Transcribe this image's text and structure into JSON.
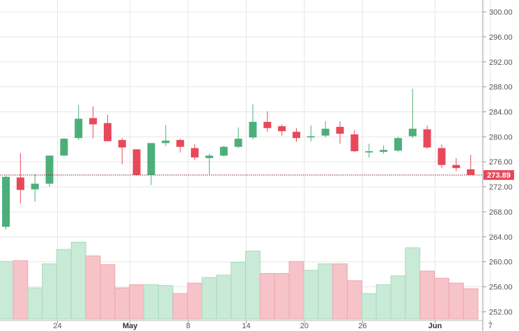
{
  "chart_data": {
    "type": "candlestick",
    "y_axis": {
      "ticks": [
        "300.00",
        "296.00",
        "292.00",
        "288.00",
        "284.00",
        "280.00",
        "276.00",
        "272.00",
        "268.00",
        "264.00",
        "260.00",
        "256.00",
        "252.00"
      ],
      "range": [
        250.6,
        301.9
      ],
      "position": "right"
    },
    "x_axis": {
      "ticks": [
        {
          "label": "24",
          "index": 3.5,
          "bold": false
        },
        {
          "label": "May",
          "index": 8.5,
          "bold": true
        },
        {
          "label": "8",
          "index": 12.5,
          "bold": false
        },
        {
          "label": "14",
          "index": 16.5,
          "bold": false
        },
        {
          "label": "20",
          "index": 20.5,
          "bold": false
        },
        {
          "label": "26",
          "index": 24.5,
          "bold": false
        },
        {
          "label": "Jun",
          "index": 29.5,
          "bold": true
        },
        {
          "label": "7",
          "index": 33.3,
          "bold": false
        }
      ]
    },
    "last_price": "273.89",
    "last_price_value": 273.89,
    "grid": true,
    "colors": {
      "up": "#4caf7a",
      "down": "#e8495a",
      "up_volume": "#c8ead6",
      "down_volume": "#f6c3c8",
      "grid": "#e6e6e6",
      "price_line": "#8a1c2a",
      "price_tag": "#e8495a"
    },
    "candles": [
      {
        "o": 265.6,
        "h": 273.8,
        "l": 265.2,
        "c": 273.6
      },
      {
        "o": 273.5,
        "h": 277.4,
        "l": 269.3,
        "c": 271.5
      },
      {
        "o": 271.6,
        "h": 274.0,
        "l": 269.6,
        "c": 272.5
      },
      {
        "o": 272.5,
        "h": 277.0,
        "l": 272.0,
        "c": 277.0
      },
      {
        "o": 277.0,
        "h": 279.8,
        "l": 276.9,
        "c": 279.7
      },
      {
        "o": 279.8,
        "h": 285.1,
        "l": 279.5,
        "c": 282.9
      },
      {
        "o": 283.0,
        "h": 284.9,
        "l": 279.8,
        "c": 282.0
      },
      {
        "o": 282.2,
        "h": 283.5,
        "l": 279.3,
        "c": 279.3
      },
      {
        "o": 279.5,
        "h": 279.8,
        "l": 275.6,
        "c": 278.3
      },
      {
        "o": 278.0,
        "h": 278.0,
        "l": 273.8,
        "c": 273.9
      },
      {
        "o": 273.9,
        "h": 279.0,
        "l": 272.3,
        "c": 279.0
      },
      {
        "o": 279.0,
        "h": 281.9,
        "l": 278.5,
        "c": 279.4
      },
      {
        "o": 279.5,
        "h": 279.7,
        "l": 277.5,
        "c": 278.4
      },
      {
        "o": 278.2,
        "h": 278.8,
        "l": 276.3,
        "c": 276.7
      },
      {
        "o": 276.6,
        "h": 277.3,
        "l": 274.0,
        "c": 277.0
      },
      {
        "o": 277.0,
        "h": 278.6,
        "l": 276.8,
        "c": 278.4
      },
      {
        "o": 278.4,
        "h": 281.5,
        "l": 278.2,
        "c": 279.7
      },
      {
        "o": 279.9,
        "h": 285.2,
        "l": 279.6,
        "c": 282.4
      },
      {
        "o": 282.4,
        "h": 284.1,
        "l": 280.8,
        "c": 281.4
      },
      {
        "o": 281.7,
        "h": 282.0,
        "l": 280.2,
        "c": 280.9
      },
      {
        "o": 280.8,
        "h": 281.4,
        "l": 279.2,
        "c": 279.8
      },
      {
        "o": 279.9,
        "h": 281.8,
        "l": 279.3,
        "c": 280.1
      },
      {
        "o": 280.2,
        "h": 282.5,
        "l": 279.9,
        "c": 281.3
      },
      {
        "o": 281.6,
        "h": 282.5,
        "l": 278.9,
        "c": 280.5
      },
      {
        "o": 280.4,
        "h": 281.1,
        "l": 277.6,
        "c": 277.7
      },
      {
        "o": 277.5,
        "h": 278.9,
        "l": 276.7,
        "c": 277.7
      },
      {
        "o": 277.6,
        "h": 278.6,
        "l": 277.3,
        "c": 277.9
      },
      {
        "o": 277.8,
        "h": 280.0,
        "l": 277.6,
        "c": 279.8
      },
      {
        "o": 280.1,
        "h": 287.7,
        "l": 279.8,
        "c": 281.3
      },
      {
        "o": 281.2,
        "h": 281.8,
        "l": 278.1,
        "c": 278.3
      },
      {
        "o": 278.2,
        "h": 278.8,
        "l": 275.0,
        "c": 275.5
      },
      {
        "o": 275.5,
        "h": 276.6,
        "l": 274.5,
        "c": 275.0
      },
      {
        "o": 274.8,
        "h": 277.1,
        "l": 273.9,
        "c": 273.9
      }
    ],
    "volumes": [
      0.72,
      0.73,
      0.39,
      0.69,
      0.87,
      0.96,
      0.79,
      0.68,
      0.39,
      0.43,
      0.43,
      0.42,
      0.32,
      0.45,
      0.52,
      0.55,
      0.71,
      0.85,
      0.57,
      0.57,
      0.72,
      0.61,
      0.69,
      0.69,
      0.48,
      0.32,
      0.43,
      0.54,
      0.89,
      0.6,
      0.51,
      0.45,
      0.38
    ]
  }
}
